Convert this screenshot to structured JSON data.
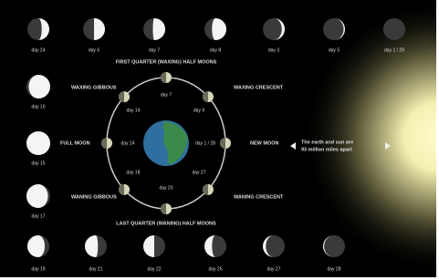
{
  "top_row": [
    "day 24",
    "day 6",
    "day 7",
    "day 8",
    "day 3",
    "day 5",
    "day 1 / 29"
  ],
  "left_column": [
    "day 10",
    "day 15",
    "day 17"
  ],
  "bottom_row": [
    "day 19",
    "day 21",
    "day 22",
    "day 25",
    "day 27",
    "day 28"
  ],
  "orbit_labels": [
    "day 7",
    "day 9",
    "day 1 / 28",
    "day 27",
    "day 20",
    "day 18",
    "day 14",
    "day 14"
  ],
  "phase_labels": {
    "first_quarter": "FIRST QUARTER (WAXING) HALF MOONS",
    "waxing_gibbous": "WAXING GIBBOUS",
    "waxing_crescent": "WAXING CRESCENT",
    "full_moon": "FULL MOON",
    "new_moon": "NEW MOON",
    "waning_gibbous": "WANING GIBBOUS",
    "waning_crescent": "WANING CRESCENT",
    "last_quarter": "LAST QUARTER (WANING) HALF MOONS"
  },
  "sun_note": [
    "The earth and sun are",
    "93 million miles apart"
  ]
}
